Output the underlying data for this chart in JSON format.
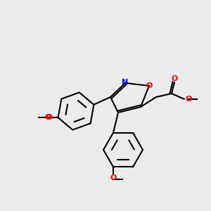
{
  "bg_color": "#ebebeb",
  "bond_color": "#000000",
  "bond_width": 1.5,
  "atom_colors": {
    "N": "#0000ff",
    "O": "#ff0000",
    "C": "#000000"
  },
  "font_size": 7.5
}
